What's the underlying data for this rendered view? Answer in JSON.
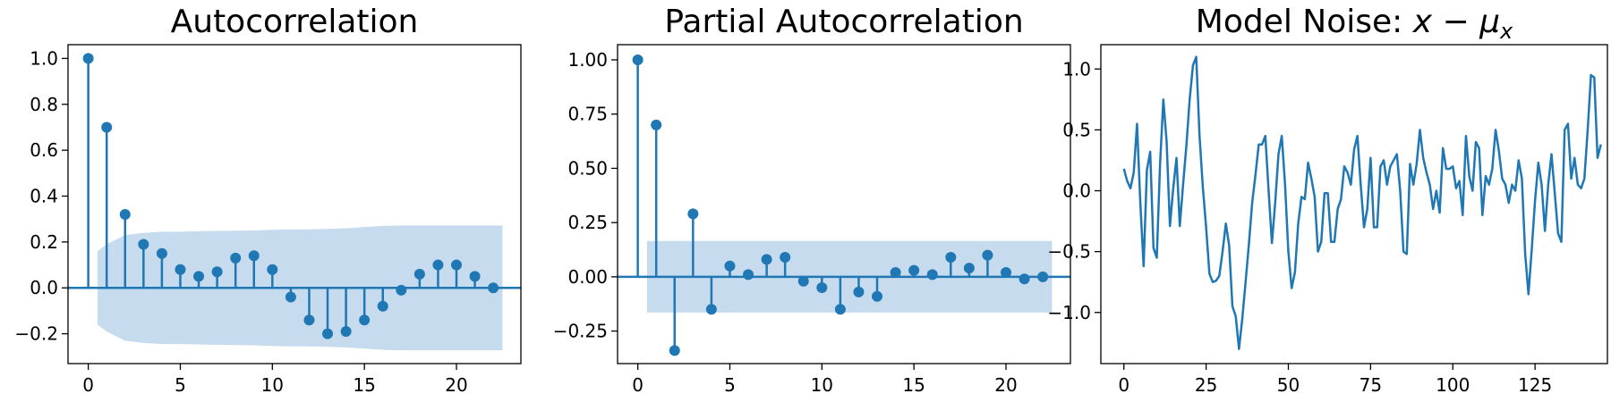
{
  "colors": {
    "series": "#1f77b4",
    "band": "#c6dbee",
    "axes": "#000000"
  },
  "chart_data": [
    {
      "type": "stem",
      "title": "Autocorrelation",
      "xlim": [
        -1.1,
        23.5
      ],
      "ylim": [
        -0.33,
        1.06
      ],
      "xticks": [
        0,
        5,
        10,
        15,
        20
      ],
      "yticks": [
        -0.2,
        0.0,
        0.2,
        0.4,
        0.6,
        0.8,
        1.0
      ],
      "ytick_labels": [
        "−0.2",
        "0.0",
        "0.2",
        "0.4",
        "0.6",
        "0.8",
        "1.0"
      ],
      "lags": [
        0,
        1,
        2,
        3,
        4,
        5,
        6,
        7,
        8,
        9,
        10,
        11,
        12,
        13,
        14,
        15,
        16,
        17,
        18,
        19,
        20,
        21,
        22
      ],
      "values": [
        1.0,
        0.7,
        0.32,
        0.19,
        0.15,
        0.08,
        0.05,
        0.07,
        0.13,
        0.14,
        0.08,
        -0.04,
        -0.14,
        -0.2,
        -0.19,
        -0.14,
        -0.08,
        -0.01,
        0.06,
        0.1,
        0.1,
        0.05,
        0.0
      ],
      "confidence_band": {
        "lags": [
          0.5,
          1,
          2,
          3,
          4,
          5,
          6,
          7,
          8,
          9,
          10,
          11,
          12,
          13,
          14,
          15,
          16,
          17,
          18,
          19,
          20,
          21,
          22,
          22.5
        ],
        "upper": [
          0.16,
          0.19,
          0.23,
          0.24,
          0.245,
          0.245,
          0.247,
          0.248,
          0.249,
          0.25,
          0.253,
          0.255,
          0.255,
          0.257,
          0.26,
          0.265,
          0.27,
          0.272,
          0.272,
          0.272,
          0.272,
          0.272,
          0.272,
          0.272
        ],
        "lower": [
          -0.16,
          -0.19,
          -0.23,
          -0.24,
          -0.245,
          -0.245,
          -0.247,
          -0.248,
          -0.249,
          -0.25,
          -0.253,
          -0.255,
          -0.255,
          -0.257,
          -0.26,
          -0.265,
          -0.27,
          -0.272,
          -0.272,
          -0.272,
          -0.272,
          -0.272,
          -0.272,
          -0.272
        ]
      },
      "zero_line": true,
      "grid": false
    },
    {
      "type": "stem",
      "title": "Partial Autocorrelation",
      "xlim": [
        -1.1,
        23.5
      ],
      "ylim": [
        -0.4,
        1.07
      ],
      "xticks": [
        0,
        5,
        10,
        15,
        20
      ],
      "yticks": [
        -0.25,
        0.0,
        0.25,
        0.5,
        0.75,
        1.0
      ],
      "ytick_labels": [
        "−0.25",
        "0.00",
        "0.25",
        "0.50",
        "0.75",
        "1.00"
      ],
      "lags": [
        0,
        1,
        2,
        3,
        4,
        5,
        6,
        7,
        8,
        9,
        10,
        11,
        12,
        13,
        14,
        15,
        16,
        17,
        18,
        19,
        20,
        21,
        22
      ],
      "values": [
        1.0,
        0.7,
        -0.34,
        0.29,
        -0.15,
        0.05,
        0.01,
        0.08,
        0.09,
        -0.02,
        -0.05,
        -0.15,
        -0.07,
        -0.09,
        0.02,
        0.03,
        0.01,
        0.09,
        0.04,
        0.1,
        0.02,
        -0.01,
        0.0
      ],
      "confidence_band": {
        "lags": [
          0.5,
          22.5
        ],
        "upper": [
          0.165,
          0.165
        ],
        "lower": [
          -0.165,
          -0.165
        ]
      },
      "zero_line": true,
      "grid": false
    },
    {
      "type": "line",
      "title": "Model Noise: x − μx",
      "title_parts": {
        "prefix": "Model Noise: ",
        "var": "x",
        "op": " − ",
        "mu": "μ",
        "sub": "x"
      },
      "xlim": [
        -7,
        147
      ],
      "ylim": [
        -1.42,
        1.2
      ],
      "xticks": [
        0,
        25,
        50,
        75,
        100,
        125
      ],
      "yticks": [
        -1.0,
        -0.5,
        0.0,
        0.5,
        1.0
      ],
      "ytick_labels": [
        "−1.0",
        "−0.5",
        "0.0",
        "0.5",
        "1.0"
      ],
      "y": [
        0.18,
        0.08,
        0.02,
        0.15,
        0.55,
        -0.1,
        -0.62,
        0.17,
        0.32,
        -0.47,
        -0.55,
        0.22,
        0.75,
        0.4,
        -0.29,
        0.02,
        0.27,
        -0.29,
        0.05,
        0.37,
        0.75,
        1.03,
        1.1,
        0.45,
        0.03,
        -0.3,
        -0.68,
        -0.75,
        -0.74,
        -0.7,
        -0.5,
        -0.27,
        -0.45,
        -0.95,
        -1.03,
        -1.3,
        -1.05,
        -0.75,
        -0.44,
        -0.1,
        0.13,
        0.38,
        0.38,
        0.45,
        0.0,
        -0.43,
        -0.1,
        0.3,
        0.45,
        0.05,
        -0.5,
        -0.8,
        -0.67,
        -0.27,
        -0.05,
        -0.07,
        0.23,
        0.1,
        -0.05,
        -0.5,
        -0.42,
        -0.02,
        -0.02,
        -0.42,
        -0.42,
        -0.15,
        -0.07,
        0.2,
        0.15,
        0.05,
        0.34,
        0.45,
        0.05,
        -0.3,
        -0.15,
        0.27,
        -0.3,
        -0.3,
        0.2,
        0.25,
        0.05,
        0.2,
        0.25,
        0.3,
        0.0,
        -0.5,
        -0.52,
        0.22,
        0.05,
        0.22,
        0.5,
        0.27,
        0.15,
        0.05,
        -0.15,
        0.0,
        -0.18,
        0.35,
        0.18,
        0.18,
        0.2,
        0.02,
        0.08,
        -0.2,
        0.45,
        0.12,
        0.0,
        0.4,
        0.35,
        -0.2,
        0.12,
        0.05,
        0.18,
        0.5,
        0.33,
        0.1,
        0.05,
        -0.1,
        0.05,
        0.0,
        0.25,
        0.1,
        -0.52,
        -0.85,
        -0.48,
        -0.08,
        0.23,
        0.05,
        -0.33,
        0.05,
        0.3,
        -0.02,
        -0.35,
        -0.42,
        0.5,
        0.55,
        0.1,
        0.27,
        0.05,
        0.02,
        0.1,
        0.5,
        0.95,
        0.93,
        0.27,
        0.38
      ],
      "grid": false
    }
  ]
}
